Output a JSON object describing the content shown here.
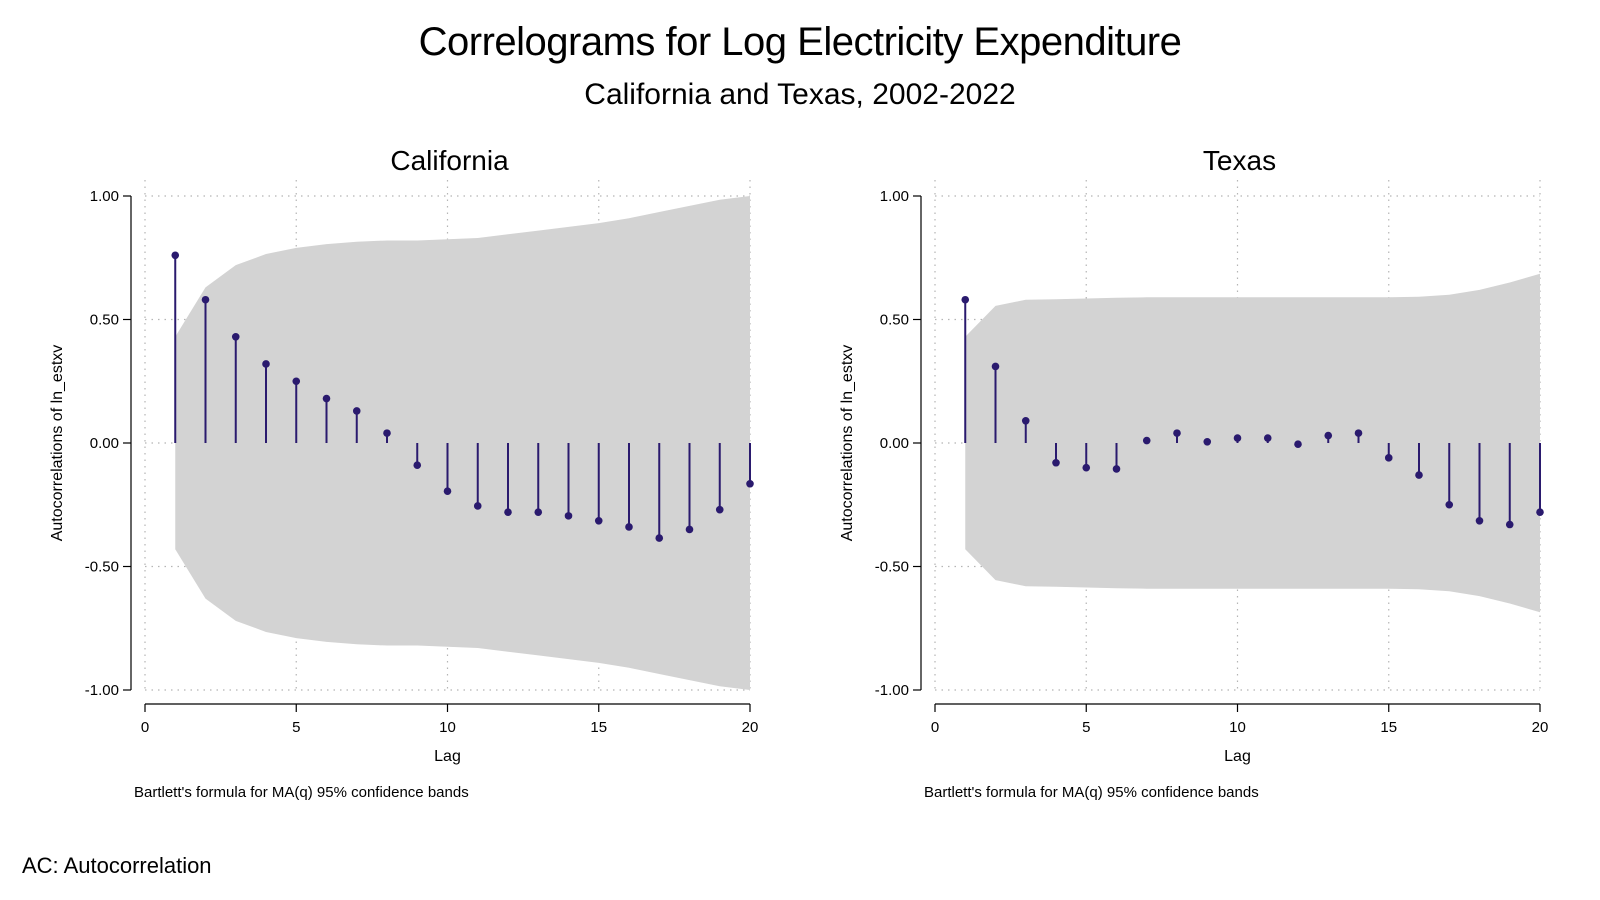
{
  "title": "Correlograms for Log Electricity Expenditure",
  "subtitle": "California and Texas, 2002-2022",
  "footnote": "AC: Autocorrelation",
  "colors": {
    "series": "#2a1a6e",
    "band": "#d3d3d3",
    "axis": "#000000",
    "grid": "#b5b5b5"
  },
  "chart_data": [
    {
      "type": "line",
      "panel_title": "California",
      "xlabel": "Lag",
      "ylabel": "Autocorrelations of ln_estxv",
      "note": "Bartlett's formula for MA(q) 95% confidence bands",
      "xlim": [
        0,
        20
      ],
      "ylim": [
        -1,
        1
      ],
      "xticks": [
        0,
        5,
        10,
        15,
        20
      ],
      "xtick_labels": [
        "0",
        "5",
        "10",
        "15",
        "20"
      ],
      "yticks": [
        -1,
        -0.5,
        0,
        0.5,
        1
      ],
      "ytick_labels": [
        "-1.00",
        "-0.50",
        "0.00",
        "0.50",
        "1.00"
      ],
      "grid": true,
      "lags": [
        1,
        2,
        3,
        4,
        5,
        6,
        7,
        8,
        9,
        10,
        11,
        12,
        13,
        14,
        15,
        16,
        17,
        18,
        19,
        20
      ],
      "ac": [
        0.76,
        0.58,
        0.43,
        0.32,
        0.25,
        0.18,
        0.13,
        0.04,
        -0.09,
        -0.195,
        -0.255,
        -0.28,
        -0.28,
        -0.295,
        -0.315,
        -0.34,
        -0.385,
        -0.35,
        -0.27,
        -0.165
      ],
      "band": [
        0.43,
        0.63,
        0.72,
        0.765,
        0.79,
        0.805,
        0.815,
        0.82,
        0.82,
        0.825,
        0.83,
        0.845,
        0.86,
        0.875,
        0.89,
        0.91,
        0.935,
        0.96,
        0.985,
        1.0
      ]
    },
    {
      "type": "line",
      "panel_title": "Texas",
      "xlabel": "Lag",
      "ylabel": "Autocorrelations of ln_estxv",
      "note": "Bartlett's formula for MA(q) 95% confidence bands",
      "xlim": [
        0,
        20
      ],
      "ylim": [
        -1,
        1
      ],
      "xticks": [
        0,
        5,
        10,
        15,
        20
      ],
      "xtick_labels": [
        "0",
        "5",
        "10",
        "15",
        "20"
      ],
      "yticks": [
        -1,
        -0.5,
        0,
        0.5,
        1
      ],
      "ytick_labels": [
        "-1.00",
        "-0.50",
        "0.00",
        "0.50",
        "1.00"
      ],
      "grid": true,
      "lags": [
        1,
        2,
        3,
        4,
        5,
        6,
        7,
        8,
        9,
        10,
        11,
        12,
        13,
        14,
        15,
        16,
        17,
        18,
        19,
        20
      ],
      "ac": [
        0.58,
        0.31,
        0.09,
        -0.08,
        -0.1,
        -0.105,
        0.01,
        0.04,
        0.005,
        0.02,
        0.02,
        -0.005,
        0.03,
        0.04,
        -0.06,
        -0.13,
        -0.25,
        -0.315,
        -0.33,
        -0.28
      ],
      "band": [
        0.43,
        0.555,
        0.58,
        0.582,
        0.585,
        0.588,
        0.59,
        0.59,
        0.59,
        0.59,
        0.59,
        0.59,
        0.59,
        0.59,
        0.59,
        0.592,
        0.6,
        0.62,
        0.65,
        0.685
      ]
    }
  ]
}
